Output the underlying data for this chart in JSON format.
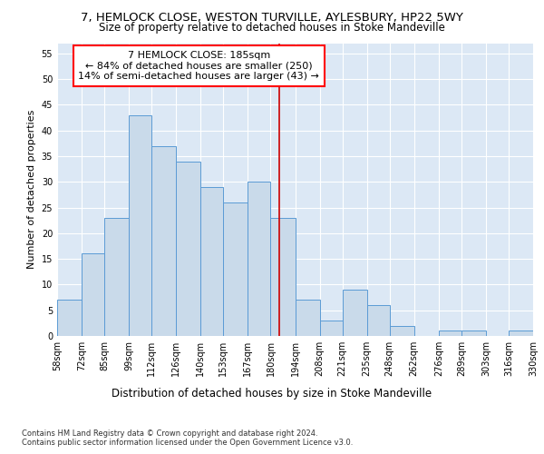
{
  "title": "7, HEMLOCK CLOSE, WESTON TURVILLE, AYLESBURY, HP22 5WY",
  "subtitle": "Size of property relative to detached houses in Stoke Mandeville",
  "xlabel": "Distribution of detached houses by size in Stoke Mandeville",
  "ylabel": "Number of detached properties",
  "footnote1": "Contains HM Land Registry data © Crown copyright and database right 2024.",
  "footnote2": "Contains public sector information licensed under the Open Government Licence v3.0.",
  "bar_color": "#c9daea",
  "bar_edge_color": "#5b9bd5",
  "annotation_line1": "7 HEMLOCK CLOSE: 185sqm",
  "annotation_line2": "← 84% of detached houses are smaller (250)",
  "annotation_line3": "14% of semi-detached houses are larger (43) →",
  "vline_x": 185,
  "vline_color": "#cc0000",
  "categories": [
    "58sqm",
    "72sqm",
    "85sqm",
    "99sqm",
    "112sqm",
    "126sqm",
    "140sqm",
    "153sqm",
    "167sqm",
    "180sqm",
    "194sqm",
    "208sqm",
    "221sqm",
    "235sqm",
    "248sqm",
    "262sqm",
    "276sqm",
    "289sqm",
    "303sqm",
    "316sqm",
    "330sqm"
  ],
  "bin_edges": [
    58,
    72,
    85,
    99,
    112,
    126,
    140,
    153,
    167,
    180,
    194,
    208,
    221,
    235,
    248,
    262,
    276,
    289,
    303,
    316,
    330
  ],
  "values": [
    7,
    16,
    23,
    43,
    37,
    34,
    29,
    26,
    30,
    23,
    7,
    3,
    9,
    6,
    2,
    0,
    1,
    1,
    0,
    1
  ],
  "ylim": [
    0,
    57
  ],
  "yticks": [
    0,
    5,
    10,
    15,
    20,
    25,
    30,
    35,
    40,
    45,
    50,
    55
  ],
  "plot_bg_color": "#dce8f5",
  "title_fontsize": 9.5,
  "subtitle_fontsize": 8.5,
  "tick_fontsize": 7,
  "ylabel_fontsize": 8,
  "xlabel_fontsize": 8.5,
  "annotation_fontsize": 8,
  "footnote_fontsize": 6
}
